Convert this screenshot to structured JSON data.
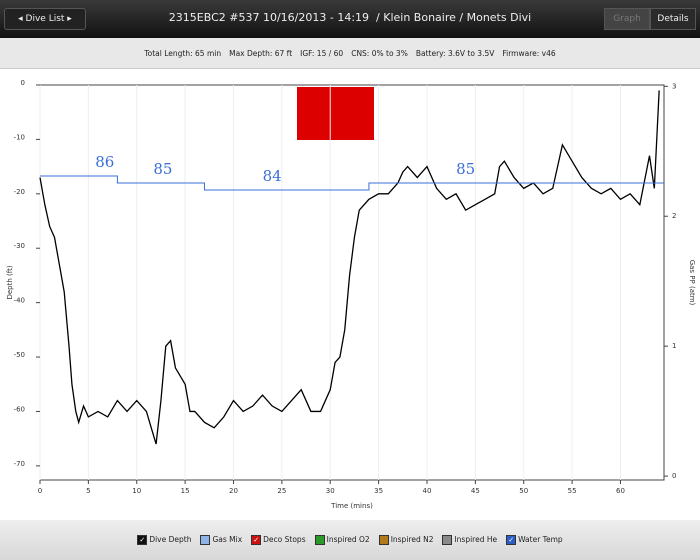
{
  "header": {
    "back_button": "Dive List",
    "title": "2315EBC2 #537 10/16/2013 - 14:19  / Klein Bonaire / Monets Divi",
    "tabs": [
      "Graph",
      "Details"
    ]
  },
  "info": [
    "Total Length: 65 min",
    "Max Depth: 67 ft",
    "IGF: 15 / 60",
    "CNS: 0% to 3%",
    "Battery: 3.6V to 3.5V",
    "Firmware: v46"
  ],
  "chart_data": {
    "type": "line",
    "x_label": "Time (mins)",
    "y_label": "Depth (ft)",
    "y2_label": "Gas PP (atm)",
    "xlim": [
      0,
      64.5
    ],
    "xticks": [
      0,
      5,
      10,
      15,
      20,
      25,
      30,
      35,
      40,
      45,
      50,
      55,
      60
    ],
    "ylim": [
      -72.6,
      0
    ],
    "yticks": [
      0,
      -10,
      -20,
      -30,
      -40,
      -50,
      -60,
      -70
    ],
    "y2lim": [
      -0.03,
      3.01
    ],
    "y2ticks": [
      0,
      1,
      2,
      3
    ],
    "series": [
      {
        "name": "Dive Depth",
        "color": "#000000",
        "x": [
          0,
          0.5,
          1,
          1.5,
          2,
          2.5,
          3,
          3.3,
          3.7,
          4,
          4.5,
          5,
          6,
          7,
          8,
          9,
          10,
          11,
          11.5,
          12,
          12.5,
          13,
          13.5,
          14,
          15,
          15.5,
          16,
          17,
          18,
          19,
          20,
          21,
          22,
          23,
          24,
          25,
          26,
          27,
          28,
          29,
          30,
          30.5,
          31,
          31.5,
          32,
          32.5,
          33,
          34,
          35,
          36,
          37,
          37.5,
          38,
          39,
          40,
          41,
          42,
          43,
          44,
          45,
          46,
          47,
          47.5,
          48,
          49,
          50,
          51,
          52,
          53,
          54,
          55,
          56,
          57,
          58,
          59,
          60,
          61,
          62,
          63,
          63.5,
          64
        ],
        "values": [
          -17,
          -22,
          -26,
          -28,
          -33,
          -38,
          -48,
          -55,
          -60,
          -62,
          -59,
          -61,
          -60,
          -61,
          -58,
          -60,
          -58,
          -60,
          -63,
          -66,
          -58,
          -48,
          -47,
          -52,
          -55,
          -60,
          -60,
          -62,
          -63,
          -61,
          -58,
          -60,
          -59,
          -57,
          -59,
          -60,
          -58,
          -56,
          -60,
          -60,
          -56,
          -51,
          -50,
          -45,
          -35,
          -28,
          -23,
          -21,
          -20,
          -20,
          -18,
          -16,
          -15,
          -17,
          -15,
          -19,
          -21,
          -20,
          -23,
          -22,
          -21,
          -20,
          -15,
          -14,
          -17,
          -19,
          -18,
          -20,
          -19,
          -11,
          -14,
          -17,
          -19,
          -20,
          -19,
          -21,
          -20,
          -22,
          -13,
          -19,
          -1
        ]
      },
      {
        "name": "Water Temp",
        "color": "#3a6fd8",
        "x": [
          0,
          2,
          3,
          7,
          8,
          16,
          17,
          33,
          34,
          64.5
        ],
        "values": [
          86,
          86,
          86,
          86,
          85,
          85,
          84,
          84,
          85,
          85
        ],
        "labels": [
          {
            "x": 6.7,
            "value": 86
          },
          {
            "x": 12.7,
            "value": 85
          },
          {
            "x": 24,
            "value": 84
          },
          {
            "x": 44,
            "value": 85
          }
        ]
      }
    ]
  },
  "legend": [
    {
      "label": "Dive Depth",
      "color": "#111111",
      "checked": true
    },
    {
      "label": "Gas Mix",
      "color": "#8fb3e8",
      "checked": false
    },
    {
      "label": "Deco Stops",
      "color": "#cc1111",
      "checked": true
    },
    {
      "label": "Inspired O2",
      "color": "#2a9a2a",
      "checked": false
    },
    {
      "label": "Inspired N2",
      "color": "#b27a1a",
      "checked": false
    },
    {
      "label": "Inspired He",
      "color": "#8a8a8a",
      "checked": false
    },
    {
      "label": "Water Temp",
      "color": "#2a5fc8",
      "checked": true
    }
  ]
}
